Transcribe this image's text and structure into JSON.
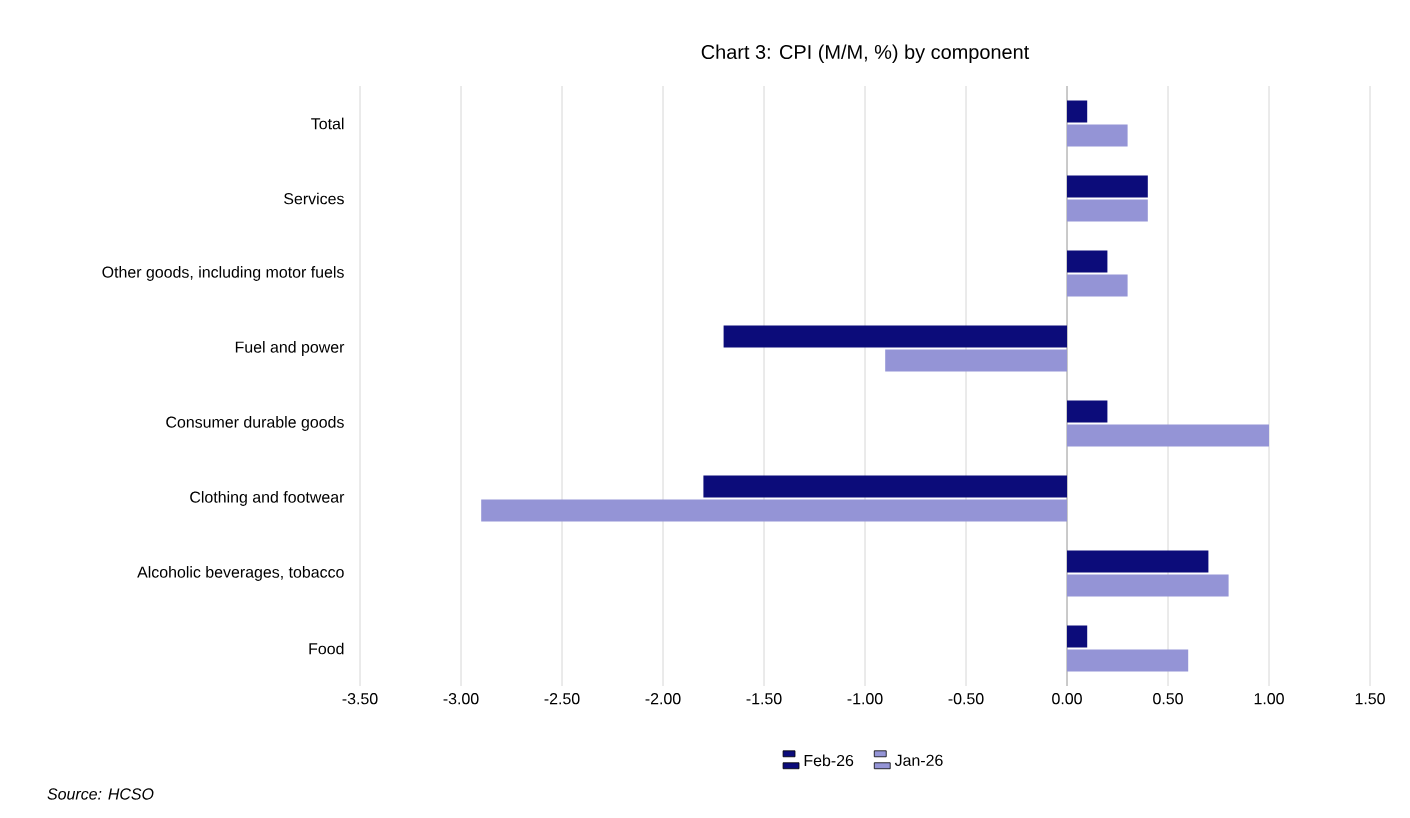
{
  "chart_data": {
    "type": "bar",
    "orientation": "horizontal",
    "title": "Chart 3: CPI (M/M, %) by component",
    "categories": [
      "Total",
      "Services",
      "Other goods, including motor fuels",
      "Fuel and power",
      "Consumer durable goods",
      "Clothing and footwear",
      "Alcoholic beverages, tobacco",
      "Food"
    ],
    "series": [
      {
        "name": "Feb-26",
        "color": "#0c0c7a",
        "values": [
          0.1,
          0.4,
          0.2,
          -1.7,
          0.2,
          -1.8,
          0.7,
          0.1
        ]
      },
      {
        "name": "Jan-26",
        "color": "#9494d6",
        "values": [
          0.3,
          0.4,
          0.3,
          -0.9,
          1.0,
          -2.9,
          0.8,
          0.6
        ]
      }
    ],
    "xlim": [
      -3.5,
      1.5
    ],
    "xticks": [
      {
        "value": -3.5,
        "label": "-3.50"
      },
      {
        "value": -3.0,
        "label": "-3.00"
      },
      {
        "value": -2.5,
        "label": "-2.50"
      },
      {
        "value": -2.0,
        "label": "-2.00"
      },
      {
        "value": -1.5,
        "label": "-1.50"
      },
      {
        "value": -1.0,
        "label": "-1.00"
      },
      {
        "value": -0.5,
        "label": "-0.50"
      },
      {
        "value": 0.0,
        "label": "0.00"
      },
      {
        "value": 0.5,
        "label": "0.50"
      },
      {
        "value": 1.0,
        "label": "1.00"
      },
      {
        "value": 1.5,
        "label": "1.50"
      }
    ],
    "grid": "x",
    "legend": "bottom",
    "annotations": [
      "*Source: HCSO*"
    ]
  }
}
